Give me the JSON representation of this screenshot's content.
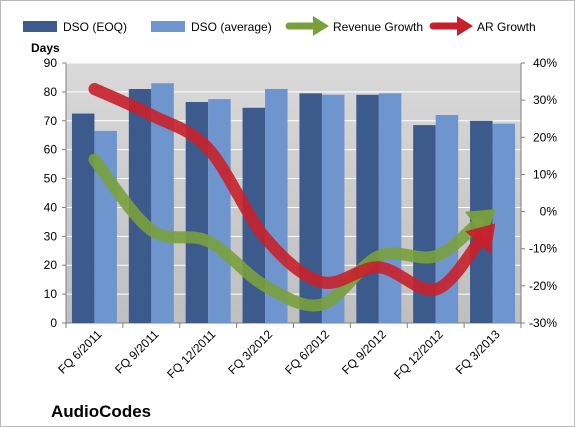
{
  "chart_data": {
    "type": "bar",
    "title": "",
    "brand_label": "AudioCodes",
    "ylabel": "Days",
    "y2label": "",
    "categories": [
      "FQ 6/2011",
      "FQ 9/2011",
      "FQ 12/2011",
      "FQ 3/2012",
      "FQ 6/2012",
      "FQ 9/2012",
      "FQ 12/2012",
      "FQ 3/2013"
    ],
    "ylim": [
      0,
      90
    ],
    "yticks": [
      0,
      10,
      20,
      30,
      40,
      50,
      60,
      70,
      80,
      90
    ],
    "y2lim": [
      -30,
      40
    ],
    "y2ticks": [
      40,
      30,
      20,
      10,
      0,
      -10,
      -20,
      -30
    ],
    "y2tick_labels": [
      "40%",
      "30%",
      "20%",
      "10%",
      "0%",
      "-10%",
      "-20%",
      "-30%"
    ],
    "grid": true,
    "legend_position": "top",
    "series": [
      {
        "name": "DSO (EOQ)",
        "kind": "bar",
        "axis": "left",
        "color": "#3c5a8c",
        "values": [
          72.5,
          81,
          76.5,
          74.5,
          79.5,
          79,
          68.5,
          70
        ]
      },
      {
        "name": "DSO (average)",
        "kind": "bar",
        "axis": "left",
        "color": "#6f95cf",
        "values": [
          66.5,
          83,
          77.5,
          81,
          79,
          79.5,
          72,
          69
        ]
      },
      {
        "name": "Revenue Growth",
        "kind": "arrow-line",
        "axis": "right",
        "color": "#79a03c",
        "values": [
          14,
          -5,
          -8,
          -20,
          -25,
          -12,
          -12,
          0
        ]
      },
      {
        "name": "AR Growth",
        "kind": "arrow-line",
        "axis": "right",
        "color": "#c8202a",
        "values": [
          33,
          26,
          17,
          -7,
          -19,
          -15,
          -21,
          -4
        ]
      }
    ]
  }
}
